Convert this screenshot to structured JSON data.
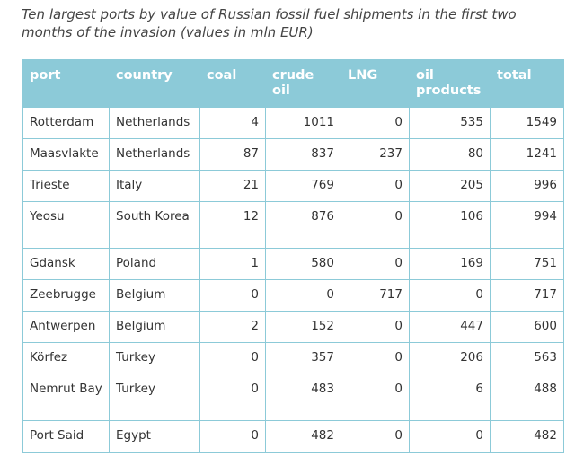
{
  "caption": "Ten largest ports by value of Russian fossil fuel shipments in the first two months of the invasion (values in mln EUR)",
  "table": {
    "headers": [
      "port",
      "country",
      "coal",
      "crude oil",
      "LNG",
      "oil\nproducts",
      "total"
    ],
    "rows": [
      [
        "Rotterdam",
        "Netherlands",
        "4",
        "1011",
        "0",
        "535",
        "1549"
      ],
      [
        "Maasvlakte",
        "Netherlands",
        "87",
        "837",
        "237",
        "80",
        "1241"
      ],
      [
        "Trieste",
        "Italy",
        "21",
        "769",
        "0",
        "205",
        "996"
      ],
      [
        "Yeosu",
        "South Korea",
        "12",
        "876",
        "0",
        "106",
        "994"
      ],
      [
        "Gdansk",
        "Poland",
        "1",
        "580",
        "0",
        "169",
        "751"
      ],
      [
        "Zeebrugge",
        "Belgium",
        "0",
        "0",
        "717",
        "0",
        "717"
      ],
      [
        "Antwerpen",
        "Belgium",
        "2",
        "152",
        "0",
        "447",
        "600"
      ],
      [
        "Körfez",
        "Turkey",
        "0",
        "357",
        "0",
        "206",
        "563"
      ],
      [
        "Nemrut Bay",
        "Turkey",
        "0",
        "483",
        "0",
        "6",
        "488"
      ],
      [
        "Port Said",
        "Egypt",
        "0",
        "482",
        "0",
        "0",
        "482"
      ]
    ]
  },
  "colors": {
    "header_background": "#8ccad8",
    "header_text": "#ffffff",
    "border": "#8ccad8"
  }
}
